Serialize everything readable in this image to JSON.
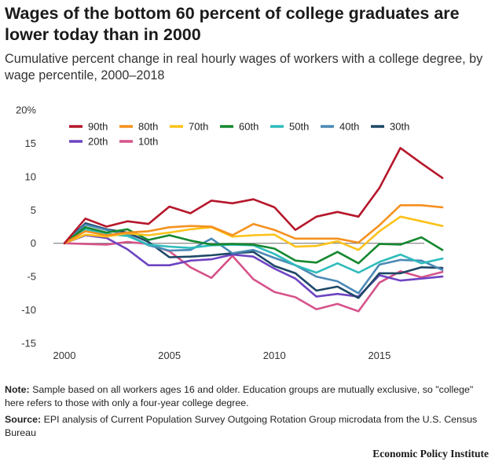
{
  "title": "Wages of the bottom 60 percent of college graduates are lower today than in 2000",
  "subtitle": "Cumulative percent change in real hourly wages of workers with a college degree, by wage percentile, 2000–2018",
  "note_label": "Note:",
  "note_text": " Sample based on all workers ages 16 and older. Education groups are mutually exclusive, so \"college\" here refers to those with only a four-year college degree.",
  "source_label": "Source:",
  "source_text": " EPI analysis of Current Population Survey Outgoing Rotation Group microdata from the U.S. Census Bureau",
  "brand": "Economic Policy Institute",
  "chart_data": {
    "type": "line",
    "title": "Wages of the bottom 60 percent of college graduates are lower today than in 2000",
    "xlabel": "",
    "ylabel": "",
    "xlim": [
      2000,
      2018
    ],
    "ylim": [
      -15,
      20
    ],
    "x_ticks": [
      2000,
      2005,
      2010,
      2015
    ],
    "y_ticks": [
      {
        "value": 20,
        "label": "20%"
      },
      {
        "value": 15,
        "label": "15"
      },
      {
        "value": 10,
        "label": "10"
      },
      {
        "value": 5,
        "label": "5"
      },
      {
        "value": 0,
        "label": "0"
      },
      {
        "value": -5,
        "label": "-5"
      },
      {
        "value": -10,
        "label": "-10"
      },
      {
        "value": -15,
        "label": "-15"
      }
    ],
    "zero_line": true,
    "grid": false,
    "legend_position": "top-left",
    "x": [
      2000,
      2001,
      2002,
      2003,
      2004,
      2005,
      2006,
      2007,
      2008,
      2009,
      2010,
      2011,
      2012,
      2013,
      2014,
      2015,
      2016,
      2017,
      2018
    ],
    "series": [
      {
        "name": "90th",
        "color": "#b5172b",
        "values": [
          0,
          3.7,
          2.5,
          3.3,
          2.9,
          5.5,
          4.5,
          6.4,
          6.0,
          6.6,
          5.4,
          2.0,
          4.0,
          4.7,
          4.0,
          8.3,
          14.3,
          12.0,
          9.8
        ]
      },
      {
        "name": "80th",
        "color": "#f5911e",
        "values": [
          0,
          1.8,
          1.2,
          1.6,
          1.8,
          2.4,
          2.6,
          2.5,
          1.2,
          2.9,
          2.0,
          0.7,
          0.7,
          0.7,
          0.1,
          2.7,
          5.7,
          5.7,
          5.4
        ]
      },
      {
        "name": "70th",
        "color": "#fcc21b",
        "values": [
          0,
          1.3,
          1.0,
          1.5,
          1.2,
          1.6,
          2.1,
          2.4,
          1.0,
          1.2,
          1.3,
          -0.5,
          -0.4,
          0.3,
          -1.0,
          1.8,
          4.0,
          3.3,
          2.6
        ]
      },
      {
        "name": "60th",
        "color": "#15882f",
        "values": [
          0,
          2.4,
          1.6,
          2.1,
          0.5,
          1.2,
          0.4,
          -0.2,
          -0.1,
          -0.2,
          -0.8,
          -2.6,
          -2.9,
          -1.3,
          -3.0,
          -0.1,
          -0.2,
          0.9,
          -1.0
        ]
      },
      {
        "name": "50th",
        "color": "#2fbcbc",
        "values": [
          0,
          2.1,
          1.4,
          1.1,
          -0.2,
          -0.5,
          -0.7,
          -0.3,
          -0.2,
          -0.3,
          -1.6,
          -3.3,
          -4.4,
          -3.0,
          -4.4,
          -2.8,
          -1.7,
          -3.0,
          -2.3
        ]
      },
      {
        "name": "40th",
        "color": "#4a89b5",
        "values": [
          0,
          2.8,
          2.0,
          1.3,
          -0.3,
          -1.1,
          -1.0,
          0.7,
          -1.5,
          -1.0,
          -2.2,
          -3.3,
          -5.0,
          -5.7,
          -7.5,
          -3.2,
          -2.5,
          -2.6,
          -4.0
        ]
      },
      {
        "name": "30th",
        "color": "#1d4766",
        "values": [
          0,
          3.0,
          2.1,
          1.6,
          0.2,
          -2.1,
          -2.0,
          -1.8,
          -1.5,
          -1.3,
          -3.4,
          -4.5,
          -7.1,
          -6.5,
          -8.2,
          -4.5,
          -4.5,
          -3.6,
          -3.7
        ]
      },
      {
        "name": "20th",
        "color": "#6e44c2",
        "values": [
          0,
          1.2,
          0.8,
          -0.9,
          -3.3,
          -3.3,
          -2.6,
          -2.4,
          -1.7,
          -2.0,
          -3.8,
          -5.3,
          -8.0,
          -7.6,
          -8.0,
          -4.8,
          -5.6,
          -5.3,
          -5.0
        ]
      },
      {
        "name": "10th",
        "color": "#d6538a",
        "values": [
          0,
          -0.1,
          -0.2,
          0.2,
          -0.1,
          -1.2,
          -3.6,
          -5.2,
          -1.9,
          -5.4,
          -7.3,
          -8.1,
          -9.9,
          -9.1,
          -10.2,
          -5.9,
          -4.2,
          -5.1,
          -4.3
        ]
      }
    ]
  }
}
